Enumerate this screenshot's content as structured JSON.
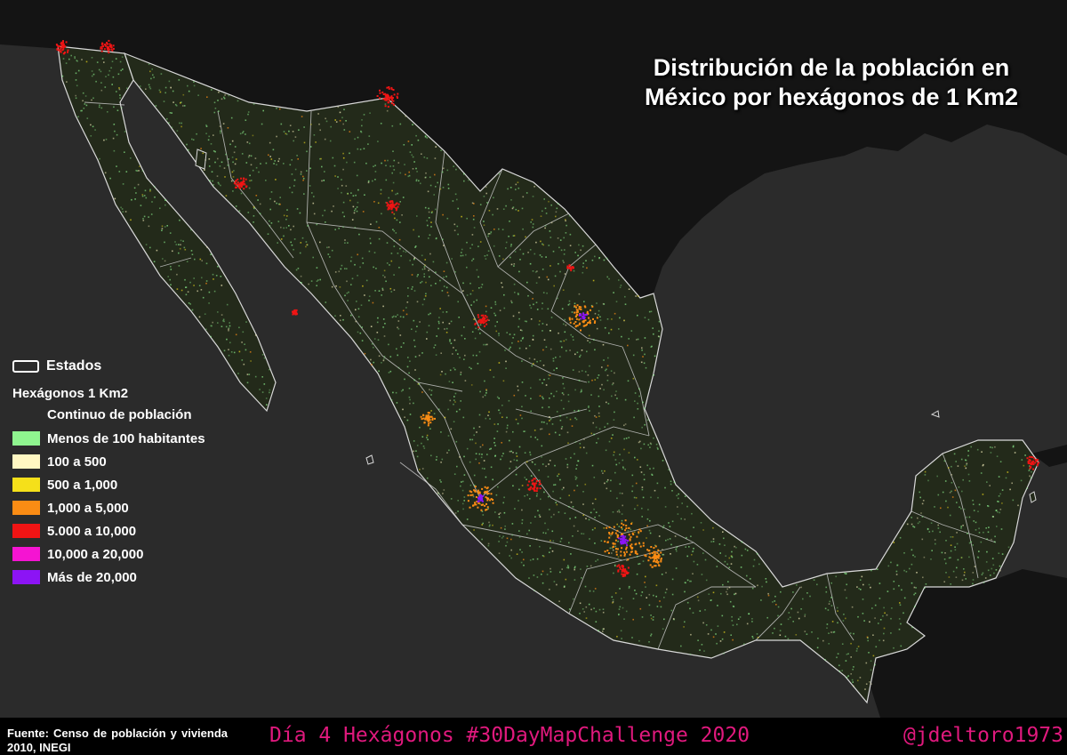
{
  "title": {
    "line1": "Distribución de la población en",
    "line2": "México por hexágonos de 1 Km2"
  },
  "legend": {
    "states_label": "Estados",
    "hex_heading": "Hexágonos 1 Km2",
    "subheading": "Continuo de población",
    "items": [
      {
        "label": "Menos de 100 habitantes",
        "color": "#8ff58f"
      },
      {
        "label": "100 a 500",
        "color": "#fff7c2"
      },
      {
        "label": "500 a 1,000",
        "color": "#f5e01a"
      },
      {
        "label": "1,000 a 5,000",
        "color": "#fa8c14"
      },
      {
        "label": "5.000 a 10,000",
        "color": "#f01414"
      },
      {
        "label": "10,000 a 20,000",
        "color": "#f514d2"
      },
      {
        "label": "Más de 20,000",
        "color": "#8c14f5"
      }
    ]
  },
  "footer": {
    "source": "Fuente: Censo de población y vivienda 2010, INEGI",
    "challenge": "Día 4 Hexágonos #30DayMapChallenge 2020",
    "credit": "@jdeltoro1973"
  },
  "colors": {
    "background": "#2b2b2b",
    "land_other": "#141414",
    "mexico_fill": "#232a1a",
    "state_border": "#d9d9d9",
    "accent": "#e0197d"
  }
}
